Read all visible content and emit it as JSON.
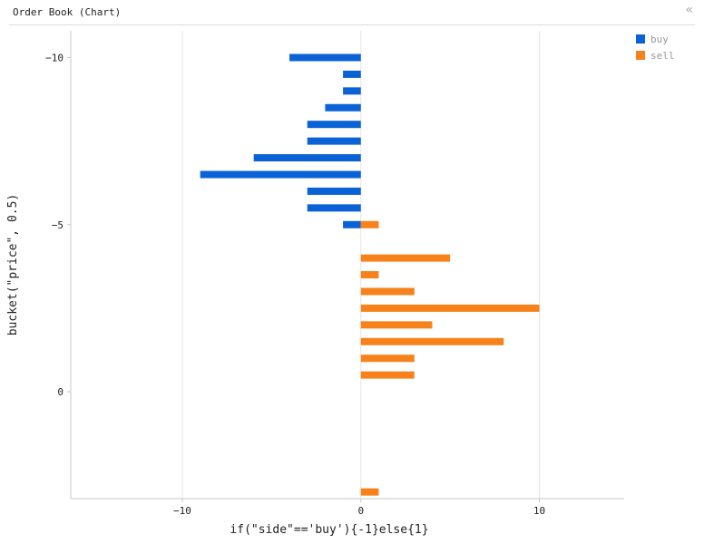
{
  "panel": {
    "title": "Order Book (Chart)",
    "collapse_icon": "double-chevron-left-icon"
  },
  "chart_data": {
    "type": "bar",
    "orientation": "horizontal",
    "xlabel": "if(\"side\"=='buy'){-1}else{1}",
    "ylabel": "bucket(\"price\", 0.5)",
    "xlim": [
      -16.25,
      14.75
    ],
    "ylim": [
      -10.8,
      3.2
    ],
    "y_inverted": true,
    "x_ticks": [
      -10,
      0,
      10
    ],
    "y_ticks": [
      -10,
      -5,
      0
    ],
    "grid": true,
    "legend": "top-right",
    "series": [
      {
        "name": "buy",
        "color": "#0b62d6",
        "points": [
          {
            "y": -10.0,
            "x": -4
          },
          {
            "y": -9.5,
            "x": -1
          },
          {
            "y": -9.0,
            "x": -1
          },
          {
            "y": -8.5,
            "x": -2
          },
          {
            "y": -8.0,
            "x": -3
          },
          {
            "y": -7.5,
            "x": -3
          },
          {
            "y": -7.0,
            "x": -6
          },
          {
            "y": -6.5,
            "x": -9
          },
          {
            "y": -6.0,
            "x": -3
          },
          {
            "y": -5.5,
            "x": -3
          },
          {
            "y": -5.0,
            "x": -1
          }
        ]
      },
      {
        "name": "sell",
        "color": "#f7821b",
        "points": [
          {
            "y": -5.0,
            "x": 1
          },
          {
            "y": -4.0,
            "x": 5
          },
          {
            "y": -3.5,
            "x": 1
          },
          {
            "y": -3.0,
            "x": 3
          },
          {
            "y": -2.5,
            "x": 10
          },
          {
            "y": -2.0,
            "x": 4
          },
          {
            "y": -1.5,
            "x": 8
          },
          {
            "y": -1.0,
            "x": 3
          },
          {
            "y": -0.5,
            "x": 3
          },
          {
            "y": 3.0,
            "x": 1
          }
        ]
      }
    ]
  }
}
